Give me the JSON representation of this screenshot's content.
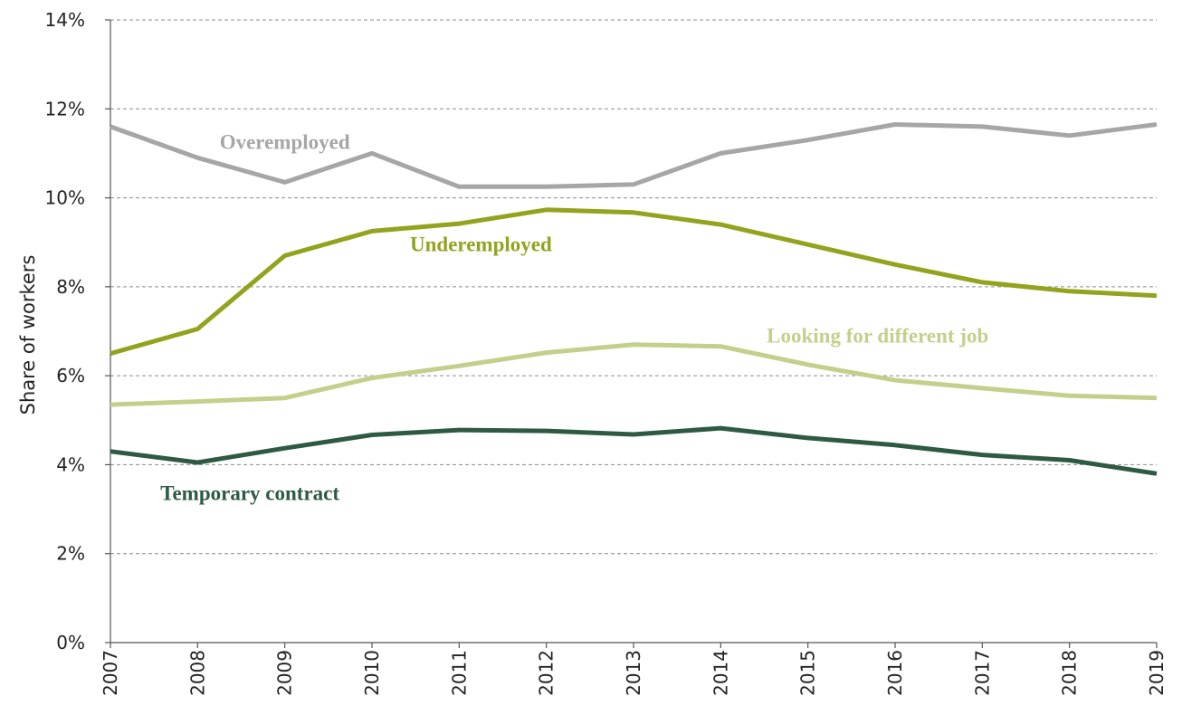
{
  "chart_data": {
    "type": "line",
    "title": "",
    "xlabel": "",
    "ylabel": "Share of workers",
    "x": [
      "2007",
      "2008",
      "2009",
      "2010",
      "2011",
      "2012",
      "2013",
      "2014",
      "2015",
      "2016",
      "2017",
      "2018",
      "2019"
    ],
    "ylim": [
      0,
      14
    ],
    "yticks": [
      "0%",
      "2%",
      "4%",
      "6%",
      "8%",
      "10%",
      "12%",
      "14%"
    ],
    "ytick_values": [
      0,
      2,
      4,
      6,
      8,
      10,
      12,
      14
    ],
    "grid": true,
    "legend": "inline labels",
    "series": [
      {
        "name": "Overemployed",
        "color": "#a6a6a6",
        "values": [
          11.6,
          10.9,
          10.35,
          11.0,
          10.25,
          10.25,
          10.3,
          11.0,
          11.3,
          11.65,
          11.6,
          11.4,
          11.65
        ]
      },
      {
        "name": "Underemployed",
        "color": "#93a31e",
        "values": [
          6.5,
          7.05,
          8.7,
          9.25,
          9.42,
          9.73,
          9.67,
          9.4,
          8.95,
          8.5,
          8.1,
          7.9,
          7.8
        ]
      },
      {
        "name": "Looking for different job",
        "color": "#c3d08b",
        "values": [
          5.35,
          5.42,
          5.5,
          5.95,
          6.22,
          6.52,
          6.7,
          6.66,
          6.25,
          5.9,
          5.72,
          5.55,
          5.5
        ]
      },
      {
        "name": "Temporary contract",
        "color": "#2e5a43",
        "values": [
          4.3,
          4.05,
          4.37,
          4.67,
          4.78,
          4.76,
          4.68,
          4.82,
          4.6,
          4.44,
          4.22,
          4.1,
          3.8
        ]
      }
    ]
  }
}
